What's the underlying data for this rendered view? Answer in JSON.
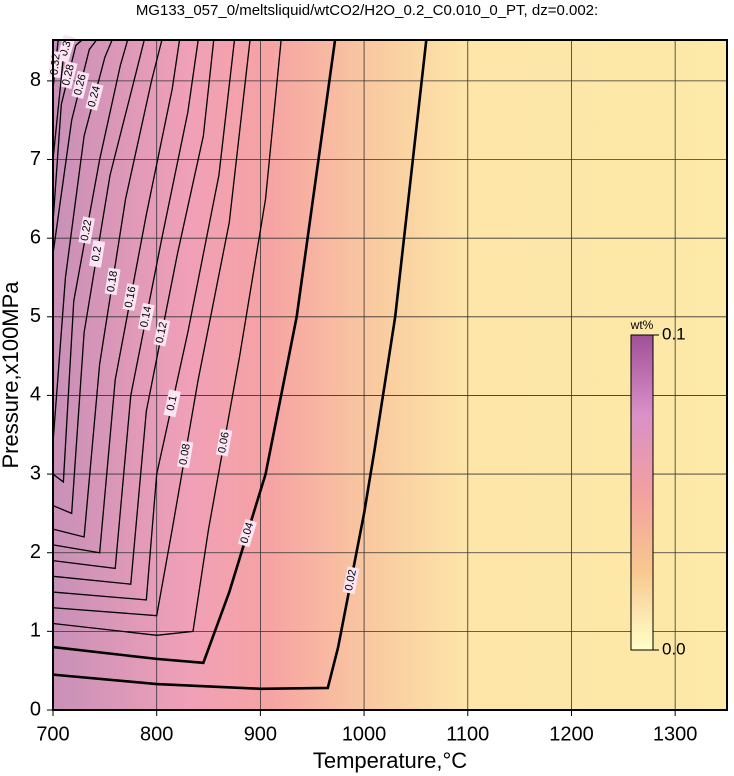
{
  "chart_data": {
    "type": "contour",
    "title": "MG133_057_0/meltsliquid/wtCO2/H2O_0.2_C0.010_0_PT, dz=0.002:",
    "x_label": "Temperature,°C",
    "y_label": "Pressure,x100MPa",
    "xlim": [
      700,
      1350
    ],
    "ylim": [
      0,
      8.52
    ],
    "xticks": [
      700,
      800,
      900,
      1000,
      1100,
      1200,
      1300
    ],
    "yticks": [
      0,
      1,
      2,
      3,
      4,
      5,
      6,
      7,
      8
    ],
    "grid": true,
    "line_color": "#000000",
    "colorbar": {
      "label": "wt%",
      "clim": [
        0,
        0.1
      ],
      "ticks": [
        {
          "value": 0,
          "label": "0.0"
        },
        0.1
      ],
      "colors": [
        "#ffffc8",
        "#f8c890",
        "#f2a0a0",
        "#d890c8",
        "#a05098"
      ]
    },
    "contours": [
      {
        "level": 0.02,
        "bold": true,
        "x": [
          700,
          800,
          900,
          965,
          975,
          1000,
          1010,
          1030,
          1060
        ],
        "y": [
          0.45,
          0.33,
          0.27,
          0.28,
          0.8,
          2.5,
          3.3,
          5,
          8.52
        ]
      },
      {
        "level": 0.04,
        "bold": true,
        "x": [
          700,
          800,
          845,
          870,
          905,
          935,
          972
        ],
        "y": [
          0.8,
          0.65,
          0.6,
          1.5,
          3,
          5,
          8.52
        ]
      },
      {
        "level": 0.06,
        "bold": false,
        "x": [
          700,
          800,
          835,
          850,
          880,
          905,
          920
        ],
        "y": [
          1.1,
          0.95,
          1.0,
          2.3,
          4.5,
          6.5,
          8.52
        ]
      },
      {
        "level": 0.08,
        "bold": false,
        "x": [
          700,
          800,
          815,
          840,
          870,
          890
        ],
        "y": [
          1.3,
          1.2,
          2.3,
          4.2,
          6.2,
          8.52
        ]
      },
      {
        "level": 0.1,
        "bold": false,
        "x": [
          700,
          790,
          800,
          830,
          860,
          875
        ],
        "y": [
          1.5,
          1.4,
          3,
          4.8,
          6.8,
          8.52
        ]
      },
      {
        "level": 0.12,
        "bold": false,
        "x": [
          700,
          775,
          790,
          820,
          845,
          855
        ],
        "y": [
          1.7,
          1.6,
          3.8,
          5.8,
          7.3,
          8.52
        ]
      },
      {
        "level": 0.14,
        "bold": false,
        "x": [
          700,
          760,
          775,
          805,
          830,
          840
        ],
        "y": [
          1.9,
          1.8,
          4,
          6,
          7.6,
          8.52
        ]
      },
      {
        "level": 0.16,
        "bold": false,
        "x": [
          700,
          745,
          760,
          790,
          815,
          822
        ],
        "y": [
          2.1,
          2.0,
          4.2,
          6.3,
          7.9,
          8.52
        ]
      },
      {
        "level": 0.18,
        "bold": false,
        "x": [
          700,
          730,
          745,
          770,
          795,
          805
        ],
        "y": [
          2.3,
          2.2,
          4.4,
          6.5,
          8,
          8.52
        ]
      },
      {
        "level": 0.2,
        "bold": false,
        "x": [
          700,
          718,
          730,
          755,
          780,
          788
        ],
        "y": [
          2.6,
          2.5,
          4.8,
          6.8,
          8.1,
          8.52
        ]
      },
      {
        "level": 0.22,
        "bold": false,
        "x": [
          700,
          710,
          720,
          745,
          765,
          772
        ],
        "y": [
          3.0,
          2.9,
          5.2,
          7.0,
          8.2,
          8.52
        ]
      },
      {
        "level": 0.24,
        "bold": false,
        "x": [
          700,
          712,
          730,
          750,
          757
        ],
        "y": [
          3.4,
          5.5,
          7.3,
          8.3,
          8.52
        ]
      },
      {
        "level": 0.26,
        "bold": false,
        "x": [
          700,
          718,
          735,
          742
        ],
        "y": [
          5.8,
          7.5,
          8.4,
          8.52
        ]
      },
      {
        "level": 0.28,
        "bold": false,
        "x": [
          700,
          708,
          722,
          728
        ],
        "y": [
          6.2,
          7.7,
          8.45,
          8.52
        ]
      },
      {
        "level": 0.3,
        "bold": false,
        "x": [
          700,
          710,
          715
        ],
        "y": [
          7.0,
          8.3,
          8.52
        ]
      },
      {
        "level": 0.32,
        "bold": false,
        "x": [
          700,
          705
        ],
        "y": [
          7.9,
          8.52
        ]
      }
    ]
  }
}
